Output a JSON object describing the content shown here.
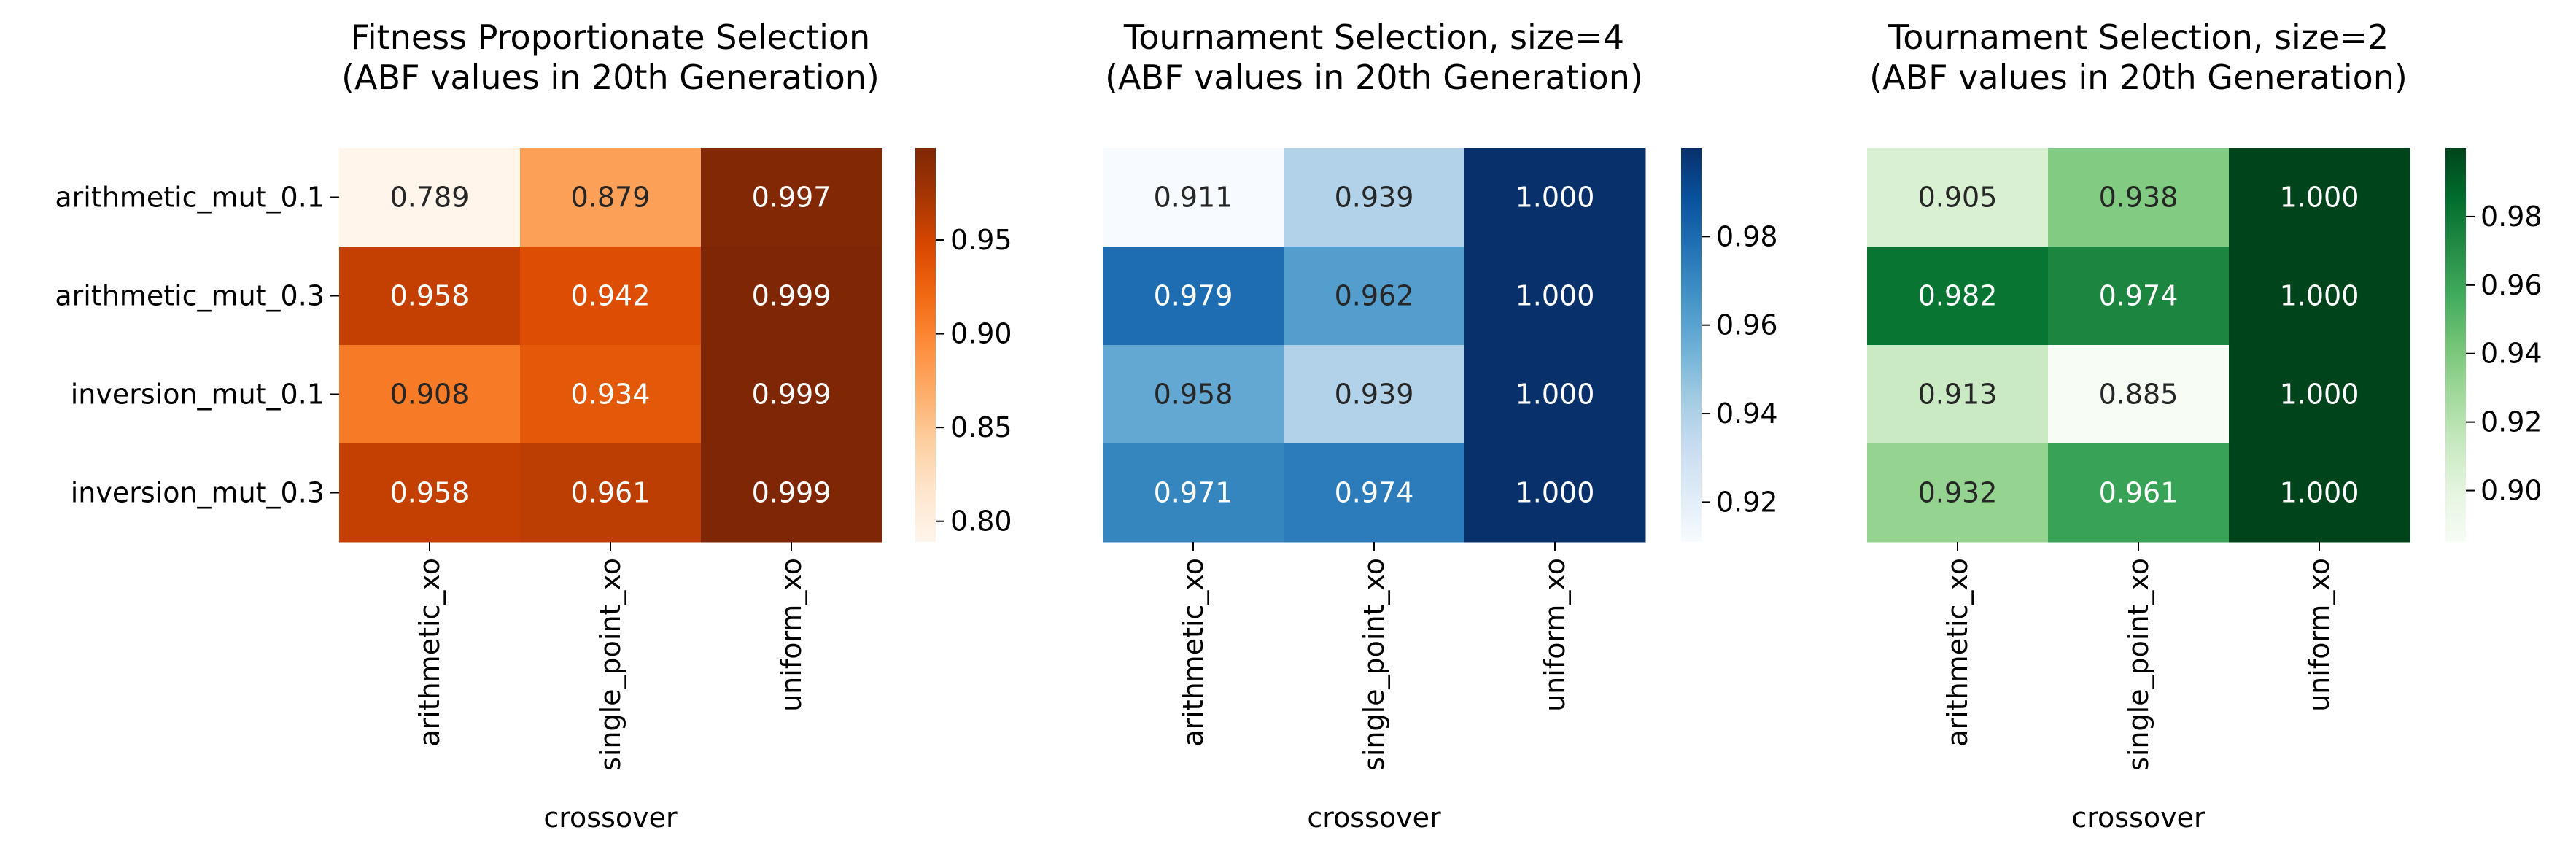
{
  "chart_data": [
    {
      "type": "heatmap",
      "title": "Fitness Proportionate Selection\n(ABF values in 20th Generation)",
      "xlabel": "crossover",
      "ylabel": "",
      "x_categories": [
        "arithmetic_xo",
        "single_point_xo",
        "uniform_xo"
      ],
      "y_categories": [
        "arithmetic_mut_0.1",
        "arithmetic_mut_0.3",
        "inversion_mut_0.1",
        "inversion_mut_0.3"
      ],
      "values": [
        [
          0.789,
          0.879,
          0.997
        ],
        [
          0.958,
          0.942,
          0.999
        ],
        [
          0.908,
          0.934,
          0.999
        ],
        [
          0.958,
          0.961,
          0.999
        ]
      ],
      "value_labels": [
        [
          "0.789",
          "0.879",
          "0.997"
        ],
        [
          "0.958",
          "0.942",
          "0.999"
        ],
        [
          "0.908",
          "0.934",
          "0.999"
        ],
        [
          "0.958",
          "0.961",
          "0.999"
        ]
      ],
      "colormap": "Oranges",
      "colors": [
        "#fff5eb",
        "#fee6ce",
        "#fdd0a2",
        "#fdae6b",
        "#fd8d3c",
        "#f16913",
        "#d94801",
        "#a63603",
        "#7f2704"
      ],
      "colorbar_range": [
        0.789,
        0.999
      ],
      "colorbar_ticks": [
        "0.80",
        "0.85",
        "0.90",
        "0.95"
      ],
      "show_y_tick_labels": true
    },
    {
      "type": "heatmap",
      "title": "Tournament Selection, size=4\n(ABF values in 20th Generation)",
      "xlabel": "crossover",
      "ylabel": "",
      "x_categories": [
        "arithmetic_xo",
        "single_point_xo",
        "uniform_xo"
      ],
      "y_categories": [
        "arithmetic_mut_0.1",
        "arithmetic_mut_0.3",
        "inversion_mut_0.1",
        "inversion_mut_0.3"
      ],
      "values": [
        [
          0.911,
          0.939,
          1.0
        ],
        [
          0.979,
          0.962,
          1.0
        ],
        [
          0.958,
          0.939,
          1.0
        ],
        [
          0.971,
          0.974,
          1.0
        ]
      ],
      "value_labels": [
        [
          "0.911",
          "0.939",
          "1.000"
        ],
        [
          "0.979",
          "0.962",
          "1.000"
        ],
        [
          "0.958",
          "0.939",
          "1.000"
        ],
        [
          "0.971",
          "0.974",
          "1.000"
        ]
      ],
      "colormap": "Blues",
      "colors": [
        "#f7fbff",
        "#deebf7",
        "#c6dbef",
        "#9ecae1",
        "#6baed6",
        "#4292c6",
        "#2171b5",
        "#08519c",
        "#08306b"
      ],
      "colorbar_range": [
        0.911,
        1.0
      ],
      "colorbar_ticks": [
        "0.92",
        "0.94",
        "0.96",
        "0.98"
      ],
      "show_y_tick_labels": false
    },
    {
      "type": "heatmap",
      "title": "Tournament Selection, size=2\n(ABF values in 20th Generation)",
      "xlabel": "crossover",
      "ylabel": "",
      "x_categories": [
        "arithmetic_xo",
        "single_point_xo",
        "uniform_xo"
      ],
      "y_categories": [
        "arithmetic_mut_0.1",
        "arithmetic_mut_0.3",
        "inversion_mut_0.1",
        "inversion_mut_0.3"
      ],
      "values": [
        [
          0.905,
          0.938,
          1.0
        ],
        [
          0.982,
          0.974,
          1.0
        ],
        [
          0.913,
          0.885,
          1.0
        ],
        [
          0.932,
          0.961,
          1.0
        ]
      ],
      "value_labels": [
        [
          "0.905",
          "0.938",
          "1.000"
        ],
        [
          "0.982",
          "0.974",
          "1.000"
        ],
        [
          "0.913",
          "0.885",
          "1.000"
        ],
        [
          "0.932",
          "0.961",
          "1.000"
        ]
      ],
      "colormap": "Greens",
      "colors": [
        "#f7fcf5",
        "#e5f5e0",
        "#c7e9c0",
        "#a1d99b",
        "#74c476",
        "#41ab5d",
        "#238b45",
        "#006d2c",
        "#00441b"
      ],
      "colorbar_range": [
        0.885,
        1.0
      ],
      "colorbar_ticks": [
        "0.90",
        "0.92",
        "0.94",
        "0.96",
        "0.98"
      ],
      "show_y_tick_labels": false
    }
  ]
}
